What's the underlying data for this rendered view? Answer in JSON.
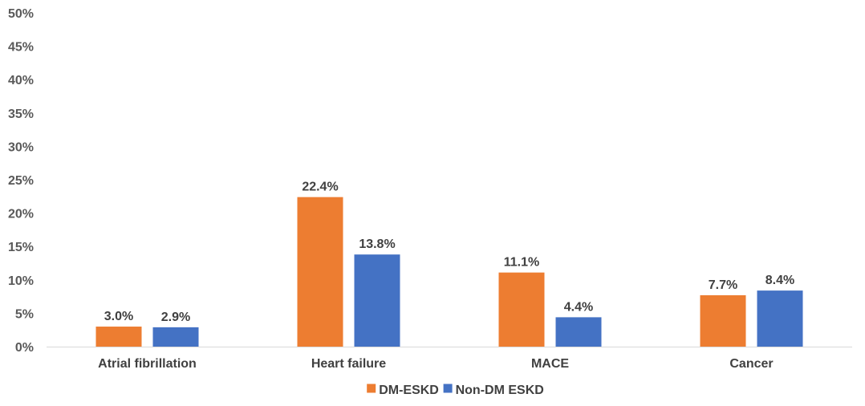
{
  "chart_data": {
    "type": "bar",
    "categories": [
      "Atrial fibrillation",
      "Heart failure",
      "MACE",
      "Cancer"
    ],
    "series": [
      {
        "name": "DM-ESKD",
        "values": [
          3.0,
          22.4,
          11.1,
          7.7
        ],
        "labels": [
          "3.0%",
          "22.4%",
          "11.1%",
          "7.7%"
        ],
        "color": "#ED7D31"
      },
      {
        "name": "Non-DM ESKD",
        "values": [
          2.9,
          13.8,
          4.4,
          8.4
        ],
        "labels": [
          "2.9%",
          "13.8%",
          "4.4%",
          "8.4%"
        ],
        "color": "#4472C4"
      }
    ],
    "ylim": [
      0,
      50
    ],
    "yticks": [
      0,
      5,
      10,
      15,
      20,
      25,
      30,
      35,
      40,
      45,
      50
    ],
    "ytick_labels": [
      "0%",
      "5%",
      "10%",
      "15%",
      "20%",
      "25%",
      "30%",
      "35%",
      "40%",
      "45%",
      "50%"
    ],
    "title": "",
    "xlabel": "",
    "ylabel": "",
    "grid": false,
    "legend_position": "bottom",
    "axis_color": "#D9D9D9"
  }
}
